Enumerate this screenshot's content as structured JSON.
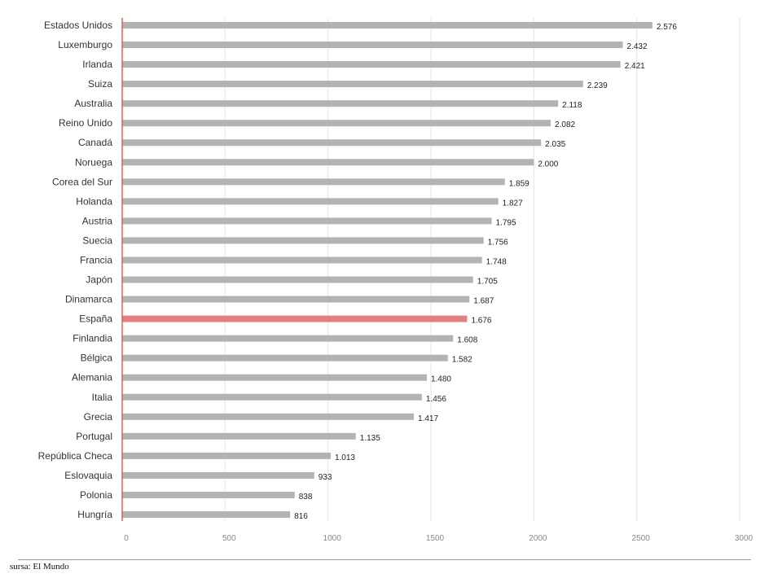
{
  "chart_data": {
    "type": "bar",
    "orientation": "horizontal",
    "categories": [
      "Estados Unidos",
      "Luxemburgo",
      "Irlanda",
      "Suiza",
      "Australia",
      "Reino Unido",
      "Canadá",
      "Noruega",
      "Corea del Sur",
      "Holanda",
      "Austria",
      "Suecia",
      "Francia",
      "Japón",
      "Dinamarca",
      "España",
      "Finlandia",
      "Bélgica",
      "Alemania",
      "Italia",
      "Grecia",
      "Portugal",
      "República Checa",
      "Eslovaquia",
      "Polonia",
      "Hungría"
    ],
    "values": [
      2576,
      2432,
      2421,
      2239,
      2118,
      2082,
      2035,
      2000,
      1859,
      1827,
      1795,
      1756,
      1748,
      1705,
      1687,
      1676,
      1608,
      1582,
      1480,
      1456,
      1417,
      1135,
      1013,
      933,
      838,
      816
    ],
    "value_labels": [
      "2.576",
      "2.432",
      "2.421",
      "2.239",
      "2.118",
      "2.082",
      "2.035",
      "2.000",
      "1.859",
      "1.827",
      "1.795",
      "1.756",
      "1.748",
      "1.705",
      "1.687",
      "1.676",
      "1.608",
      "1.582",
      "1.480",
      "1.456",
      "1.417",
      "1.135",
      "1.013",
      "933",
      "838",
      "816"
    ],
    "highlight_category": "España",
    "xlim": [
      0,
      3000
    ],
    "xticks": [
      0,
      500,
      1000,
      1500,
      2000,
      2500,
      3000
    ],
    "xtick_labels": [
      "0",
      "500",
      "1000",
      "1500",
      "2000",
      "2500",
      "3000"
    ],
    "grid": true,
    "title": "",
    "xlabel": "",
    "ylabel": ""
  },
  "colors": {
    "bar": "#b3b3b3",
    "highlight_bar": "#e08080",
    "highlight_label": "#c0504d",
    "axis_line": "#e66060",
    "grid": "#e6e6e6"
  },
  "source_text": "sursa: El Mundo"
}
